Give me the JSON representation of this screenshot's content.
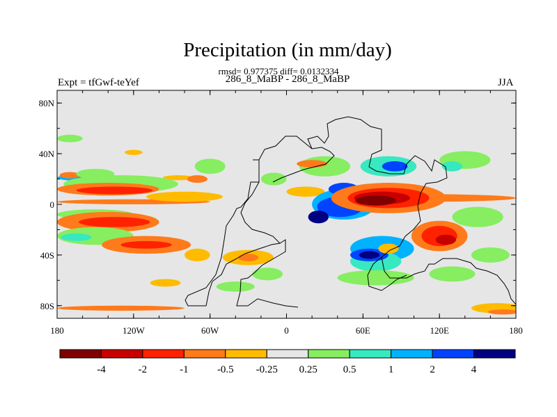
{
  "chart_data": {
    "type": "heatmap",
    "title": "Precipitation (in mm/day)",
    "stats_line": "rmsd= 0.977375  diff= 0.0132334",
    "subtitle": "286_8_MaBP - 286_8_MaBP",
    "left_label": "Expt = tfGwf-teYef",
    "right_label": "JJA",
    "xlim": [
      -180,
      180
    ],
    "ylim": [
      -90,
      90
    ],
    "x_ticks": [
      {
        "value": -180,
        "label": "180"
      },
      {
        "value": -120,
        "label": "120W"
      },
      {
        "value": -60,
        "label": "60W"
      },
      {
        "value": 0,
        "label": "0"
      },
      {
        "value": 60,
        "label": "60E"
      },
      {
        "value": 120,
        "label": "120E"
      },
      {
        "value": 180,
        "label": "180"
      }
    ],
    "y_ticks": [
      {
        "value": 80,
        "label": "80N"
      },
      {
        "value": 40,
        "label": "40N"
      },
      {
        "value": 0,
        "label": "0"
      },
      {
        "value": -40,
        "label": "40S"
      },
      {
        "value": -80,
        "label": "80S"
      }
    ],
    "background_color": "#e6e6e6",
    "colorbar": {
      "colors": [
        "#800000",
        "#c80000",
        "#ff2200",
        "#ff7a1a",
        "#ffbb00",
        "#e6e6e6",
        "#86ee60",
        "#38e8c0",
        "#00b2ff",
        "#0044ff",
        "#000080"
      ],
      "labels": [
        "-4",
        "-2",
        "-1",
        "-0.5",
        "-0.25",
        "0.25",
        "0.5",
        "1",
        "2",
        "4"
      ]
    },
    "regions": [
      {
        "bin": 8,
        "lon": -160,
        "lat": 21,
        "rx": 20,
        "ry": 2.5
      },
      {
        "bin": 3,
        "lon": -170,
        "lat": 23,
        "rx": 8,
        "ry": 2.5
      },
      {
        "bin": 4,
        "lon": -85,
        "lat": 21,
        "rx": 12,
        "ry": 2
      },
      {
        "bin": 6,
        "lon": -170,
        "lat": 52,
        "rx": 10,
        "ry": 3
      },
      {
        "bin": 4,
        "lon": -120,
        "lat": 41,
        "rx": 7,
        "ry": 2
      },
      {
        "bin": 6,
        "lon": -150,
        "lat": 24,
        "rx": 15,
        "ry": 4
      },
      {
        "bin": 6,
        "lon": -130,
        "lat": 16,
        "rx": 45,
        "ry": 7
      },
      {
        "bin": 6,
        "lon": -60,
        "lat": 30,
        "rx": 12,
        "ry": 6
      },
      {
        "bin": 6,
        "lon": 30,
        "lat": 30,
        "rx": 20,
        "ry": 8
      },
      {
        "bin": 3,
        "lon": -140,
        "lat": 12,
        "rx": 40,
        "ry": 5
      },
      {
        "bin": 2,
        "lon": -135,
        "lat": 11,
        "rx": 30,
        "ry": 3
      },
      {
        "bin": 3,
        "lon": -70,
        "lat": 20,
        "rx": 8,
        "ry": 3
      },
      {
        "bin": 3,
        "lon": -120,
        "lat": 2,
        "rx": 60,
        "ry": 2
      },
      {
        "bin": 4,
        "lon": -80,
        "lat": 6,
        "rx": 30,
        "ry": 4
      },
      {
        "bin": 6,
        "lon": -150,
        "lat": -8,
        "rx": 30,
        "ry": 4
      },
      {
        "bin": 3,
        "lon": -140,
        "lat": -14,
        "rx": 40,
        "ry": 8
      },
      {
        "bin": 2,
        "lon": -135,
        "lat": -14,
        "rx": 28,
        "ry": 4
      },
      {
        "bin": 6,
        "lon": -150,
        "lat": -25,
        "rx": 30,
        "ry": 7
      },
      {
        "bin": 7,
        "lon": -165,
        "lat": -26,
        "rx": 12,
        "ry": 3
      },
      {
        "bin": 3,
        "lon": -110,
        "lat": -32,
        "rx": 35,
        "ry": 7
      },
      {
        "bin": 2,
        "lon": -110,
        "lat": -32,
        "rx": 20,
        "ry": 3
      },
      {
        "bin": 4,
        "lon": -70,
        "lat": -40,
        "rx": 10,
        "ry": 5
      },
      {
        "bin": 4,
        "lon": -30,
        "lat": -42,
        "rx": 20,
        "ry": 6
      },
      {
        "bin": 3,
        "lon": -30,
        "lat": -42,
        "rx": 8,
        "ry": 3
      },
      {
        "bin": 6,
        "lon": -15,
        "lat": -55,
        "rx": 12,
        "ry": 5
      },
      {
        "bin": 6,
        "lon": -40,
        "lat": -65,
        "rx": 15,
        "ry": 4
      },
      {
        "bin": 4,
        "lon": -95,
        "lat": -62,
        "rx": 12,
        "ry": 3
      },
      {
        "bin": 3,
        "lon": -130,
        "lat": -82,
        "rx": 50,
        "ry": 2
      },
      {
        "bin": 6,
        "lon": -10,
        "lat": 20,
        "rx": 10,
        "ry": 5
      },
      {
        "bin": 4,
        "lon": 15,
        "lat": 10,
        "rx": 15,
        "ry": 4
      },
      {
        "bin": 3,
        "lon": 20,
        "lat": 32,
        "rx": 12,
        "ry": 3
      },
      {
        "bin": 8,
        "lon": 45,
        "lat": 0,
        "rx": 25,
        "ry": 12
      },
      {
        "bin": 9,
        "lon": 42,
        "lat": -2,
        "rx": 18,
        "ry": 8
      },
      {
        "bin": 10,
        "lon": 25,
        "lat": -10,
        "rx": 8,
        "ry": 5
      },
      {
        "bin": 9,
        "lon": 45,
        "lat": 12,
        "rx": 12,
        "ry": 5
      },
      {
        "bin": 10,
        "lon": 50,
        "lat": 8,
        "rx": 6,
        "ry": 3
      },
      {
        "bin": 7,
        "lon": 80,
        "lat": 30,
        "rx": 22,
        "ry": 8
      },
      {
        "bin": 9,
        "lon": 85,
        "lat": 30,
        "rx": 10,
        "ry": 4
      },
      {
        "bin": 6,
        "lon": 140,
        "lat": 35,
        "rx": 20,
        "ry": 7
      },
      {
        "bin": 7,
        "lon": 130,
        "lat": 30,
        "rx": 8,
        "ry": 4
      },
      {
        "bin": 3,
        "lon": 110,
        "lat": 5,
        "rx": 70,
        "ry": 3
      },
      {
        "bin": 3,
        "lon": 80,
        "lat": 5,
        "rx": 45,
        "ry": 12
      },
      {
        "bin": 2,
        "lon": 80,
        "lat": 5,
        "rx": 32,
        "ry": 8
      },
      {
        "bin": 1,
        "lon": 75,
        "lat": 5,
        "rx": 22,
        "ry": 5
      },
      {
        "bin": 0,
        "lon": 70,
        "lat": 3,
        "rx": 16,
        "ry": 4
      },
      {
        "bin": 6,
        "lon": 150,
        "lat": -10,
        "rx": 20,
        "ry": 8
      },
      {
        "bin": 3,
        "lon": 120,
        "lat": -25,
        "rx": 22,
        "ry": 12
      },
      {
        "bin": 2,
        "lon": 120,
        "lat": -25,
        "rx": 14,
        "ry": 8
      },
      {
        "bin": 1,
        "lon": 125,
        "lat": -28,
        "rx": 8,
        "ry": 4
      },
      {
        "bin": 8,
        "lon": 75,
        "lat": -35,
        "rx": 25,
        "ry": 10
      },
      {
        "bin": 7,
        "lon": 70,
        "lat": -45,
        "rx": 20,
        "ry": 8
      },
      {
        "bin": 9,
        "lon": 65,
        "lat": -40,
        "rx": 15,
        "ry": 5
      },
      {
        "bin": 10,
        "lon": 65,
        "lat": -40,
        "rx": 8,
        "ry": 3
      },
      {
        "bin": 6,
        "lon": 70,
        "lat": -58,
        "rx": 30,
        "ry": 6
      },
      {
        "bin": 4,
        "lon": 80,
        "lat": -35,
        "rx": 8,
        "ry": 4
      },
      {
        "bin": 6,
        "lon": 160,
        "lat": -40,
        "rx": 15,
        "ry": 6
      },
      {
        "bin": 6,
        "lon": 130,
        "lat": -55,
        "rx": 18,
        "ry": 6
      },
      {
        "bin": 4,
        "lon": 165,
        "lat": -82,
        "rx": 20,
        "ry": 4
      },
      {
        "bin": 3,
        "lon": 170,
        "lat": -85,
        "rx": 12,
        "ry": 2
      }
    ]
  }
}
